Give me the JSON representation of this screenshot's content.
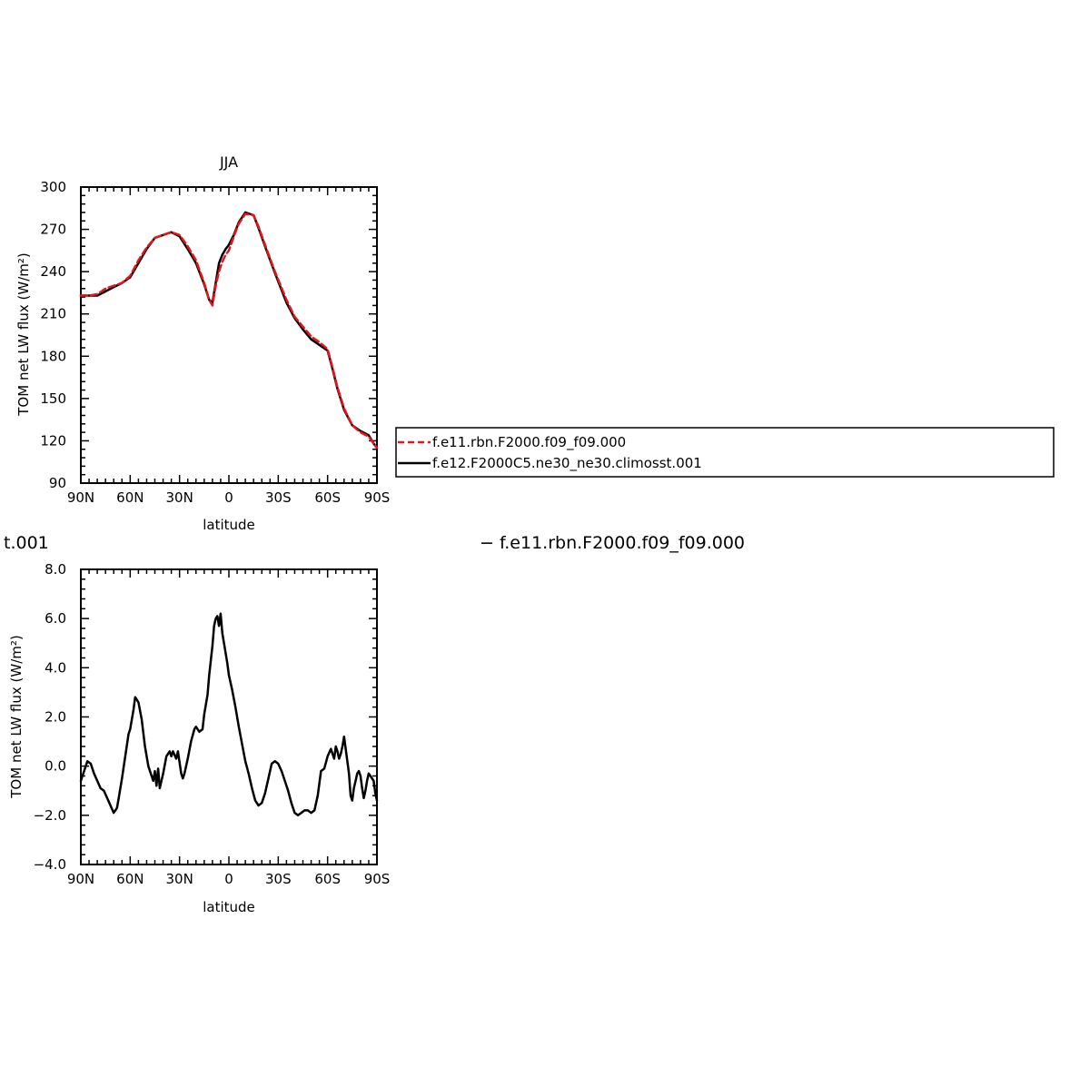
{
  "chart_data": [
    {
      "type": "line",
      "title": "JJA",
      "xlabel": "latitude",
      "ylabel": "TOM net LW flux (W/m²)",
      "xlim": [
        90,
        -90
      ],
      "ylim": [
        90,
        300
      ],
      "xticks": [
        90,
        60,
        30,
        0,
        -30,
        -60,
        -90
      ],
      "xtick_labels": [
        "90N",
        "60N",
        "30N",
        "0",
        "30S",
        "60S",
        "90S"
      ],
      "yticks": [
        90,
        120,
        150,
        180,
        210,
        240,
        270,
        300
      ],
      "ytick_labels": [
        "90",
        "120",
        "150",
        "180",
        "210",
        "240",
        "270",
        "300"
      ],
      "legend_position": "right",
      "series": [
        {
          "name": "f.e11.rbn.F2000.f09_f09.000",
          "color": "#e8141a",
          "style": "dashed",
          "x": [
            90,
            85,
            80,
            75,
            70,
            65,
            60,
            55,
            50,
            45,
            40,
            35,
            30,
            25,
            20,
            15,
            12,
            10,
            8,
            6,
            4,
            2,
            0,
            -3,
            -6,
            -10,
            -15,
            -18,
            -22,
            -28,
            -35,
            -40,
            -45,
            -50,
            -55,
            -60,
            -63,
            -66,
            -70,
            -75,
            -80,
            -85,
            -88,
            -90
          ],
          "y": [
            223,
            223,
            224,
            228,
            230,
            232,
            237,
            248,
            257,
            264,
            266,
            268,
            266,
            258,
            248,
            232,
            220,
            216,
            230,
            240,
            247,
            252,
            255,
            265,
            274,
            281,
            280,
            272,
            259,
            240,
            220,
            208,
            201,
            194,
            190,
            185,
            172,
            158,
            143,
            131,
            126,
            123,
            118,
            115
          ]
        },
        {
          "name": "f.e12.F2000C5.ne30_ne30.climosst.001",
          "color": "#000000",
          "style": "solid",
          "x": [
            90,
            85,
            80,
            75,
            70,
            65,
            60,
            55,
            50,
            45,
            40,
            35,
            30,
            25,
            20,
            15,
            12,
            10,
            8,
            6,
            4,
            2,
            0,
            -3,
            -6,
            -10,
            -15,
            -18,
            -22,
            -28,
            -35,
            -40,
            -45,
            -50,
            -55,
            -60,
            -63,
            -66,
            -70,
            -75,
            -80,
            -85,
            -88,
            -90
          ],
          "y": [
            223,
            223,
            223,
            226,
            229,
            232,
            236,
            246,
            256,
            264,
            266,
            268,
            265,
            256,
            246,
            231,
            220,
            218,
            232,
            246,
            252,
            256,
            259,
            266,
            275,
            282,
            280,
            271,
            258,
            239,
            218,
            207,
            199,
            192,
            188,
            184,
            171,
            157,
            142,
            131,
            127,
            124,
            118,
            115
          ]
        }
      ]
    },
    {
      "type": "line",
      "title": "",
      "xlabel": "latitude",
      "ylabel": "TOM net LW flux (W/m²)",
      "xlim": [
        90,
        -90
      ],
      "ylim": [
        -4,
        8
      ],
      "xticks": [
        90,
        60,
        30,
        0,
        -30,
        -60,
        -90
      ],
      "xtick_labels": [
        "90N",
        "60N",
        "30N",
        "0",
        "30S",
        "60S",
        "90S"
      ],
      "yticks": [
        -4,
        -2,
        0,
        2,
        4,
        6,
        8
      ],
      "ytick_labels": [
        "−4.0",
        "−2.0",
        "0.0",
        "2.0",
        "4.0",
        "6.0",
        "8.0"
      ],
      "series": [
        {
          "color": "#000000",
          "style": "solid",
          "x": [
            90,
            88,
            86,
            84,
            82,
            80,
            78,
            76,
            74,
            72,
            70,
            68,
            67,
            65,
            63,
            61,
            60,
            58,
            57,
            55,
            53,
            51,
            49,
            47,
            46,
            45,
            44,
            43,
            42,
            40,
            38,
            36,
            35,
            34,
            32,
            31,
            29,
            28,
            27,
            25,
            23,
            21,
            20,
            18,
            16,
            15,
            13,
            12,
            10,
            9,
            8,
            7,
            6,
            5,
            4,
            3,
            2,
            1,
            0,
            -1,
            -2,
            -4,
            -6,
            -8,
            -10,
            -12,
            -14,
            -16,
            -18,
            -20,
            -22,
            -24,
            -26,
            -28,
            -30,
            -32,
            -34,
            -36,
            -38,
            -40,
            -42,
            -44,
            -46,
            -48,
            -50,
            -52,
            -54,
            -56,
            -58,
            -60,
            -62,
            -64,
            -65,
            -66,
            -67,
            -68,
            -69,
            -70,
            -71,
            -72,
            -73,
            -74,
            -75,
            -76,
            -77,
            -78,
            -79,
            -80,
            -81,
            -82,
            -83,
            -84,
            -85,
            -86,
            -87,
            -88,
            -89,
            -90
          ],
          "y": [
            -0.6,
            -0.2,
            0.2,
            0.1,
            -0.3,
            -0.6,
            -0.9,
            -1.0,
            -1.3,
            -1.6,
            -1.9,
            -1.7,
            -1.3,
            -0.5,
            0.4,
            1.3,
            1.5,
            2.3,
            2.8,
            2.6,
            1.9,
            0.8,
            0.0,
            -0.4,
            -0.6,
            -0.2,
            -0.8,
            -0.1,
            -0.9,
            -0.3,
            0.4,
            0.6,
            0.4,
            0.6,
            0.3,
            0.6,
            -0.3,
            -0.5,
            -0.3,
            0.3,
            1.0,
            1.5,
            1.6,
            1.4,
            1.5,
            2.1,
            2.9,
            3.7,
            4.9,
            5.7,
            6.0,
            6.1,
            5.7,
            6.2,
            5.4,
            5.0,
            4.6,
            4.2,
            3.7,
            3.4,
            3.1,
            2.4,
            1.6,
            0.9,
            0.2,
            -0.3,
            -0.9,
            -1.4,
            -1.6,
            -1.5,
            -1.1,
            -0.5,
            0.1,
            0.2,
            0.1,
            -0.2,
            -0.6,
            -1.0,
            -1.5,
            -1.9,
            -2.0,
            -1.9,
            -1.8,
            -1.8,
            -1.9,
            -1.8,
            -1.2,
            -0.2,
            -0.1,
            0.4,
            0.7,
            0.3,
            0.8,
            0.6,
            0.3,
            0.5,
            0.8,
            1.2,
            0.7,
            0.2,
            -0.3,
            -1.2,
            -1.4,
            -0.9,
            -0.6,
            -0.3,
            -0.2,
            -0.4,
            -0.9,
            -1.3,
            -1.0,
            -0.6,
            -0.3,
            -0.4,
            -0.5,
            -0.6,
            -1.1,
            -1.4
          ]
        }
      ]
    }
  ],
  "subtitle_left": "t.001",
  "subtitle_right": "− f.e11.rbn.F2000.f09_f09.000"
}
